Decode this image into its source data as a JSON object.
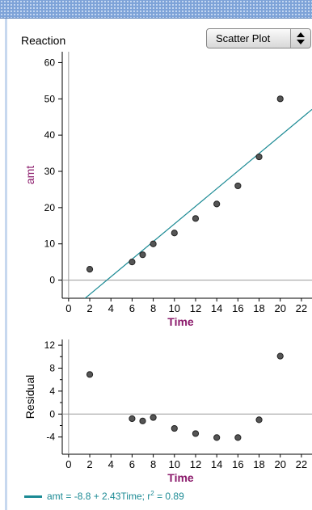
{
  "header": {
    "title": "Reaction",
    "plot_type": "Scatter Plot"
  },
  "colors": {
    "line": "#1b8a94",
    "axis_title": "#8b1a6b",
    "points": "#555555"
  },
  "equation": {
    "lhs": "amt",
    "text": " = -8.8 + 2.43Time; r",
    "exponent": "2",
    "tail": " = 0.89"
  },
  "chart_data": [
    {
      "type": "scatter",
      "title": "",
      "xlabel": "Time",
      "ylabel": "amt",
      "xlim": [
        -0.6,
        23
      ],
      "ylim": [
        -5,
        63
      ],
      "x_ticks": [
        0,
        2,
        4,
        6,
        8,
        10,
        12,
        14,
        16,
        18,
        20,
        22
      ],
      "y_ticks": [
        0,
        10,
        20,
        30,
        40,
        50,
        60
      ],
      "points": [
        {
          "x": 2,
          "y": 3
        },
        {
          "x": 6,
          "y": 5
        },
        {
          "x": 7,
          "y": 7
        },
        {
          "x": 8,
          "y": 10
        },
        {
          "x": 10,
          "y": 13
        },
        {
          "x": 12,
          "y": 17
        },
        {
          "x": 14,
          "y": 21
        },
        {
          "x": 16,
          "y": 26
        },
        {
          "x": 18,
          "y": 34
        },
        {
          "x": 20,
          "y": 50
        }
      ],
      "fit_line": {
        "intercept": -8.8,
        "slope": 2.43
      }
    },
    {
      "type": "scatter",
      "title": "",
      "xlabel": "Time",
      "ylabel": "Residual",
      "xlim": [
        -0.6,
        23
      ],
      "ylim": [
        -7,
        13
      ],
      "x_ticks": [
        0,
        2,
        4,
        6,
        8,
        10,
        12,
        14,
        16,
        18,
        20,
        22
      ],
      "y_ticks": [
        -4,
        0,
        4,
        8,
        12
      ],
      "y_ticks_extra": [
        -2,
        2,
        6,
        10
      ],
      "points": [
        {
          "x": 2,
          "y": 6.9
        },
        {
          "x": 6,
          "y": -0.8
        },
        {
          "x": 7,
          "y": -1.2
        },
        {
          "x": 8,
          "y": -0.6
        },
        {
          "x": 10,
          "y": -2.5
        },
        {
          "x": 12,
          "y": -3.4
        },
        {
          "x": 14,
          "y": -4.1
        },
        {
          "x": 16,
          "y": -4.1
        },
        {
          "x": 18,
          "y": -1.0
        },
        {
          "x": 20,
          "y": 10.1
        }
      ]
    }
  ]
}
